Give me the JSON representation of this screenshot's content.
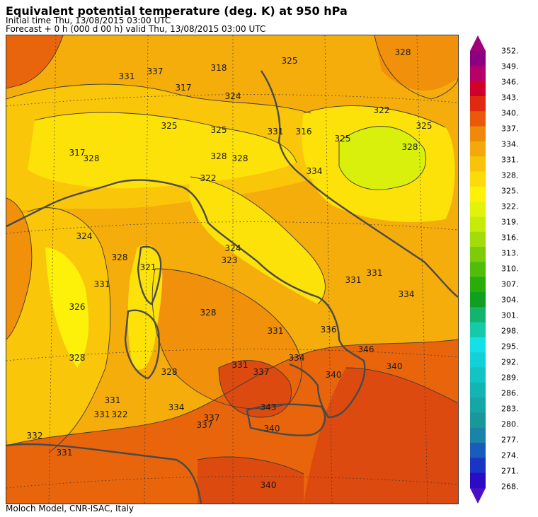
{
  "header": {
    "title": "Equivalent potential temperature (deg. K) at 950 hPa",
    "initial_time": "Initial time  Thu, 13/08/2015  03:00 UTC",
    "forecast": "Forecast +   0 h  (000 d 00 h)  valid Thu, 13/08/2015 03:00 UTC"
  },
  "footer": {
    "credit": "Moloch Model, CNR-ISAC, Italy"
  },
  "colorbar": {
    "labels": [
      "352.",
      "349.",
      "346.",
      "343.",
      "340.",
      "337.",
      "334.",
      "331.",
      "328.",
      "325.",
      "322.",
      "319.",
      "316.",
      "313.",
      "310.",
      "307.",
      "304.",
      "301.",
      "298.",
      "295.",
      "292.",
      "289.",
      "286.",
      "283.",
      "280.",
      "277.",
      "274.",
      "271.",
      "268."
    ],
    "colors": [
      "#8a0080",
      "#b5006a",
      "#d0002a",
      "#e02a10",
      "#e85a0a",
      "#ee8a0a",
      "#f3a90a",
      "#f8c40a",
      "#fbdc0a",
      "#fdf10a",
      "#e3f20a",
      "#c6ea0a",
      "#a4dc0a",
      "#7ccc0a",
      "#52bc0a",
      "#2aac0a",
      "#10a020",
      "#14b46e",
      "#14caa8",
      "#14e0e8",
      "#14d0d8",
      "#14c4c4",
      "#14b4b4",
      "#16a6a6",
      "#1a9898",
      "#1a84a8",
      "#1a5cbc",
      "#1a34c4",
      "#2a0cc4"
    ],
    "top_arrow_color": "#a0007a",
    "bottom_arrow_color": "#4a10c8"
  },
  "map": {
    "contour_labels": [
      "325",
      "328",
      "331",
      "337",
      "317",
      "328",
      "325",
      "328",
      "325",
      "318",
      "322",
      "322",
      "325",
      "328",
      "316",
      "334",
      "317",
      "328",
      "331",
      "324",
      "324",
      "328",
      "326",
      "321",
      "323",
      "331",
      "331",
      "334",
      "328",
      "331",
      "328",
      "331",
      "334",
      "337",
      "343",
      "340",
      "337",
      "340",
      "331",
      "322",
      "346",
      "340",
      "331",
      "332",
      "328",
      "334",
      "331",
      "336",
      "331",
      "324",
      "340",
      "337",
      "325"
    ],
    "key_colors": {
      "field_deep_red": "#dc4a10",
      "field_orange_red": "#e8650c",
      "field_orange": "#f1900a",
      "field_light_orange": "#f5ad0c",
      "field_yellow_orange": "#fac60a",
      "field_yellow": "#fde20a",
      "field_lime": "#d8f00c",
      "coastline": "#4a4a4a"
    }
  }
}
